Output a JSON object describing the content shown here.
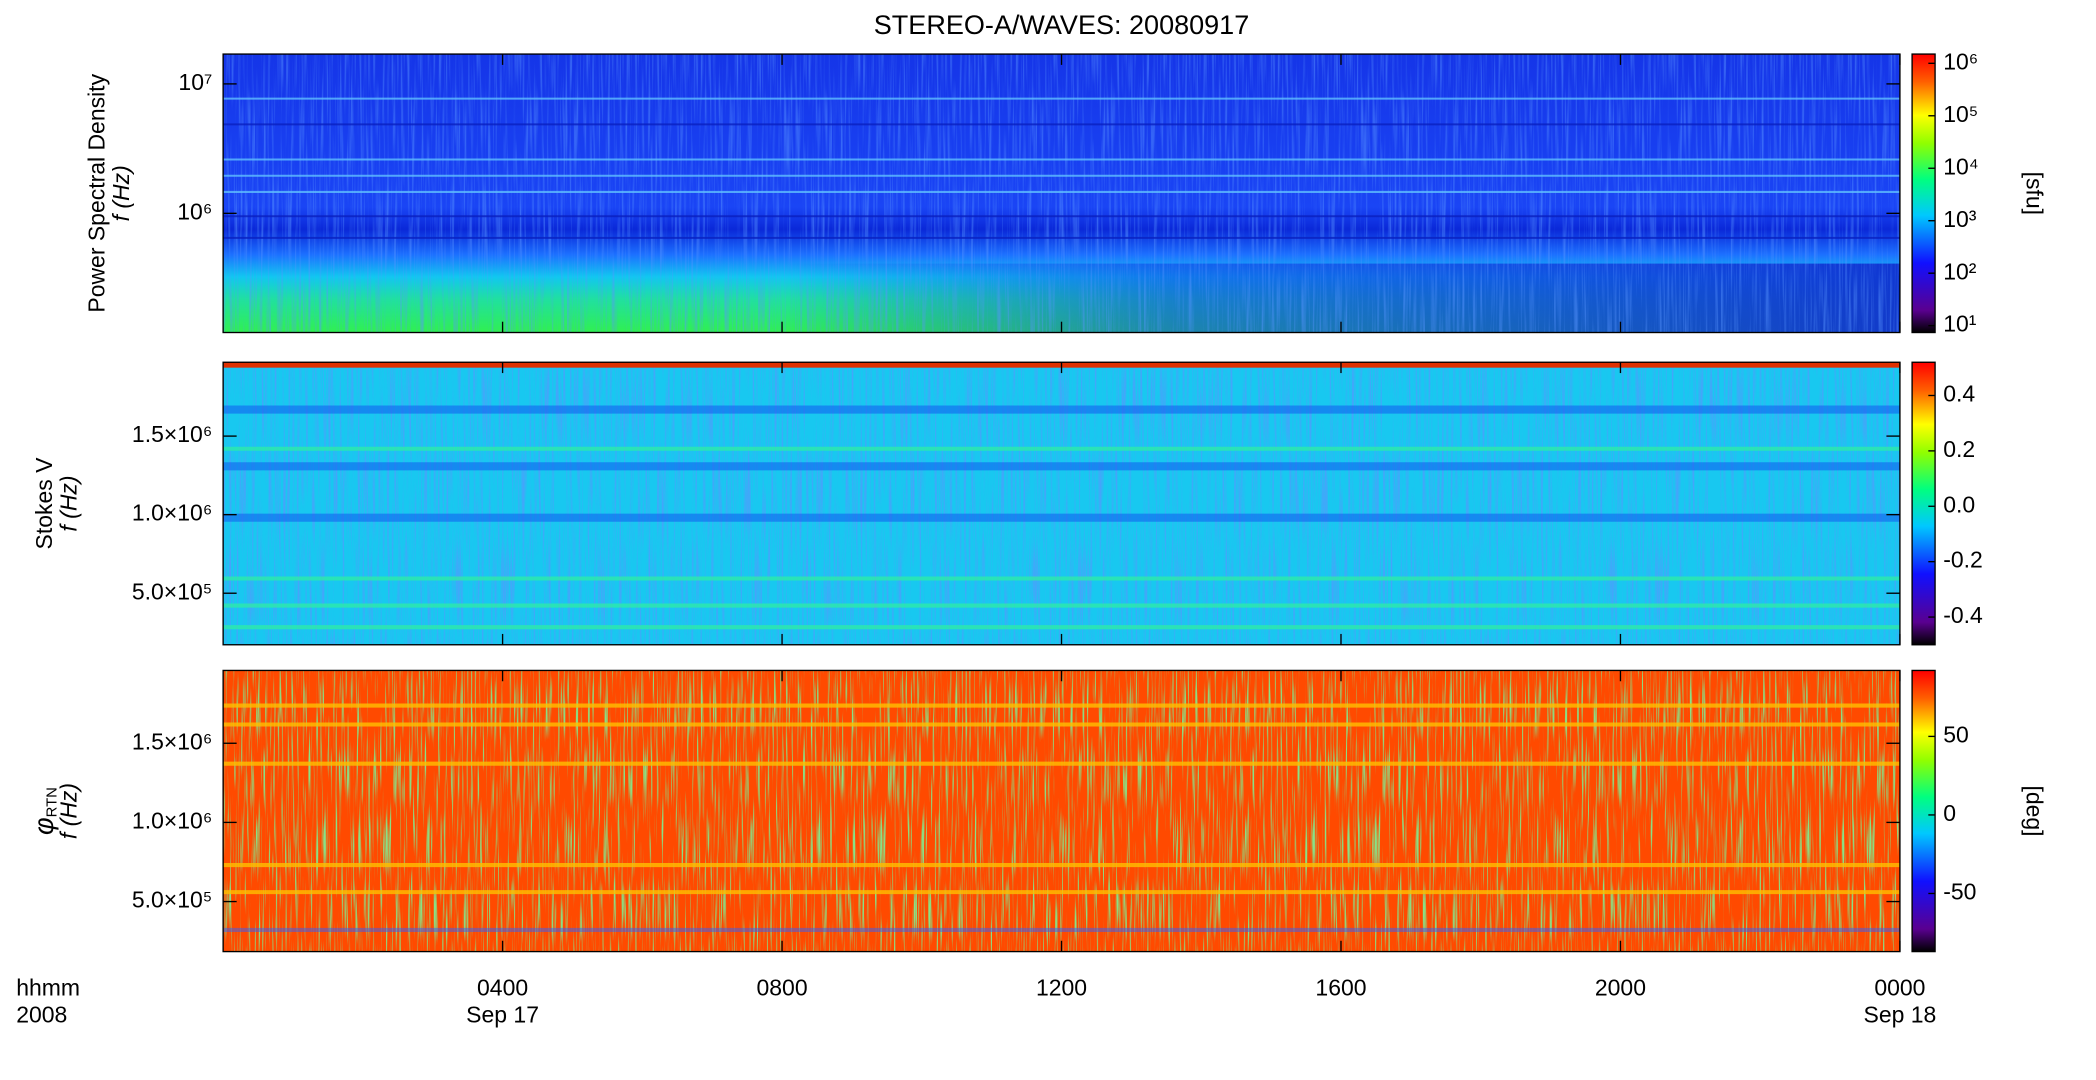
{
  "chart_data": [
    {
      "type": "spectrogram",
      "title": "STEREO-A/WAVES: 20080917",
      "ylabel_title": "Power Spectral Density",
      "ylabel": "f (Hz)",
      "log_y": true,
      "ylim": [
        120000,
        17000000
      ],
      "yticks": [
        {
          "value": 1000000,
          "label": "10⁶"
        },
        {
          "value": 10000000,
          "label": "10⁷"
        }
      ],
      "colorbar_label": "[sfu]",
      "clog": true,
      "clim": [
        7.4,
        1500000
      ],
      "cticks": [
        {
          "value": 10,
          "label": "10¹"
        },
        {
          "value": 100,
          "label": "10²"
        },
        {
          "value": 1000,
          "label": "10³"
        },
        {
          "value": 10000,
          "label": "10⁴"
        },
        {
          "value": 100000,
          "label": "10⁵"
        },
        {
          "value": 1000000,
          "label": "10⁶"
        }
      ]
    },
    {
      "type": "spectrogram",
      "ylabel_title": "Stokes V",
      "ylabel": "f (Hz)",
      "log_y": false,
      "ylim": [
        172000,
        1970000
      ],
      "yticks": [
        {
          "value": 500000,
          "label": "5.0×10⁵"
        },
        {
          "value": 1000000,
          "label": "1.0×10⁶"
        },
        {
          "value": 1500000,
          "label": "1.5×10⁶"
        }
      ],
      "clog": false,
      "clim": [
        -0.5,
        0.52
      ],
      "cticks": [
        {
          "value": -0.4,
          "label": "-0.4"
        },
        {
          "value": -0.2,
          "label": "-0.2"
        },
        {
          "value": 0,
          "label": "0.0"
        },
        0.2,
        0.4
      ]
    },
    {
      "type": "spectrogram",
      "ylabel_title": "φ",
      "ylabel_subscript": "RTN",
      "ylabel": "f (Hz)",
      "log_y": false,
      "ylim": [
        184000,
        1960000
      ],
      "yticks": [
        {
          "value": 500000,
          "label": "5.0×10⁵"
        },
        {
          "value": 1000000,
          "label": "1.0×10⁶"
        },
        {
          "value": 1500000,
          "label": "1.5×10⁶"
        }
      ],
      "colorbar_label": "[deg]",
      "clog": false,
      "clim": [
        -87,
        92
      ],
      "cticks": [
        -50,
        0,
        50
      ],
      "xlim": [
        0,
        24
      ],
      "xticks": [
        {
          "value": 4,
          "label": "0400"
        },
        {
          "value": 8,
          "label": "0800"
        },
        {
          "value": 12,
          "label": "1200"
        },
        {
          "value": 16,
          "label": "1600"
        },
        {
          "value": 20,
          "label": "2000"
        },
        {
          "value": 24,
          "label": "0000"
        }
      ],
      "date_labels": [
        {
          "value": 4,
          "label": "Sep 17"
        },
        {
          "value": 24,
          "label": "Sep 18"
        }
      ],
      "xlabel_lines": [
        "hhmm",
        "2008"
      ]
    }
  ]
}
